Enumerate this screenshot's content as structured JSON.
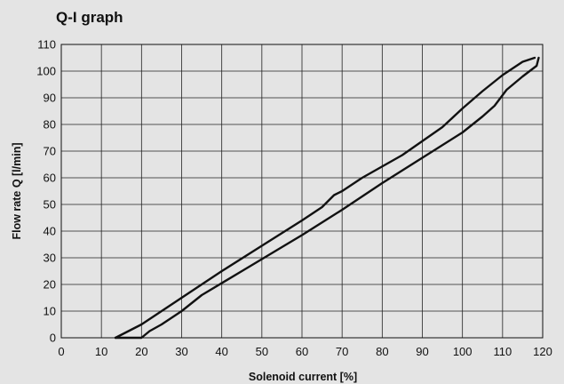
{
  "title": "Q-I graph",
  "chart_data": {
    "type": "line",
    "title": "Q-I graph",
    "xlabel": "Solenoid current [%]",
    "ylabel": "Flow rate Q [l/min]",
    "xlim": [
      0,
      120
    ],
    "ylim": [
      0,
      110
    ],
    "x_ticks": [
      0,
      10,
      20,
      30,
      40,
      50,
      60,
      70,
      80,
      90,
      100,
      110,
      120
    ],
    "y_ticks": [
      0,
      10,
      20,
      30,
      40,
      50,
      60,
      70,
      80,
      90,
      100,
      110
    ],
    "grid": true,
    "line_color": "#111111",
    "series": [
      {
        "points": [
          [
            13.5,
            0
          ],
          [
            20,
            5
          ],
          [
            30,
            15
          ],
          [
            40,
            25
          ],
          [
            50,
            34.5
          ],
          [
            60,
            44
          ],
          [
            65,
            49
          ],
          [
            68,
            53.5
          ],
          [
            70,
            55
          ],
          [
            75,
            60
          ],
          [
            85,
            68.5
          ],
          [
            95,
            79
          ],
          [
            100,
            86
          ],
          [
            105,
            92.5
          ],
          [
            110,
            98.5
          ],
          [
            115,
            103.5
          ],
          [
            118,
            105
          ]
        ]
      },
      {
        "points": [
          [
            13.5,
            0
          ],
          [
            20,
            0
          ],
          [
            22,
            2.5
          ],
          [
            25,
            5
          ],
          [
            30,
            10
          ],
          [
            35,
            16
          ],
          [
            45,
            25
          ],
          [
            55,
            34
          ],
          [
            60,
            38.5
          ],
          [
            70,
            48
          ],
          [
            80,
            58
          ],
          [
            90,
            67.5
          ],
          [
            100,
            77
          ],
          [
            105,
            83
          ],
          [
            108,
            87
          ],
          [
            111,
            93
          ],
          [
            115,
            98
          ],
          [
            118.5,
            102
          ],
          [
            119,
            105
          ]
        ]
      }
    ]
  }
}
